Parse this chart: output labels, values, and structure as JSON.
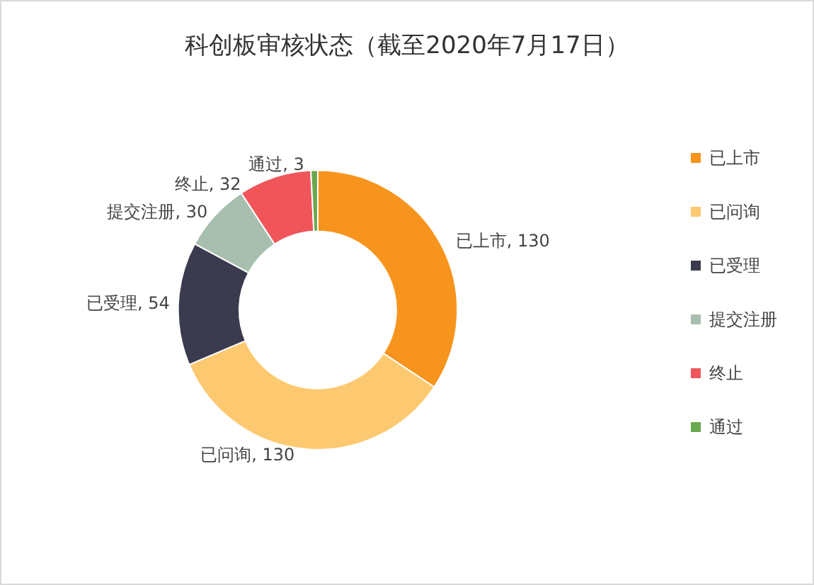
{
  "chart_data": {
    "type": "donut",
    "title": "科创板审核状态（截至2020年7月17日）",
    "categories": [
      "已上市",
      "已问询",
      "已受理",
      "提交注册",
      "终止",
      "通过"
    ],
    "values": [
      130,
      130,
      54,
      30,
      32,
      3
    ],
    "value_labels": [
      "已上市, 130",
      "已问询, 130",
      "已受理, 54",
      "提交注册, 30",
      "终止, 32",
      "通过, 3"
    ],
    "colors": [
      "#f7941d",
      "#fdc970",
      "#3b3b4f",
      "#a8bfb0",
      "#f0555a",
      "#6aa84f"
    ],
    "legend": "right"
  }
}
